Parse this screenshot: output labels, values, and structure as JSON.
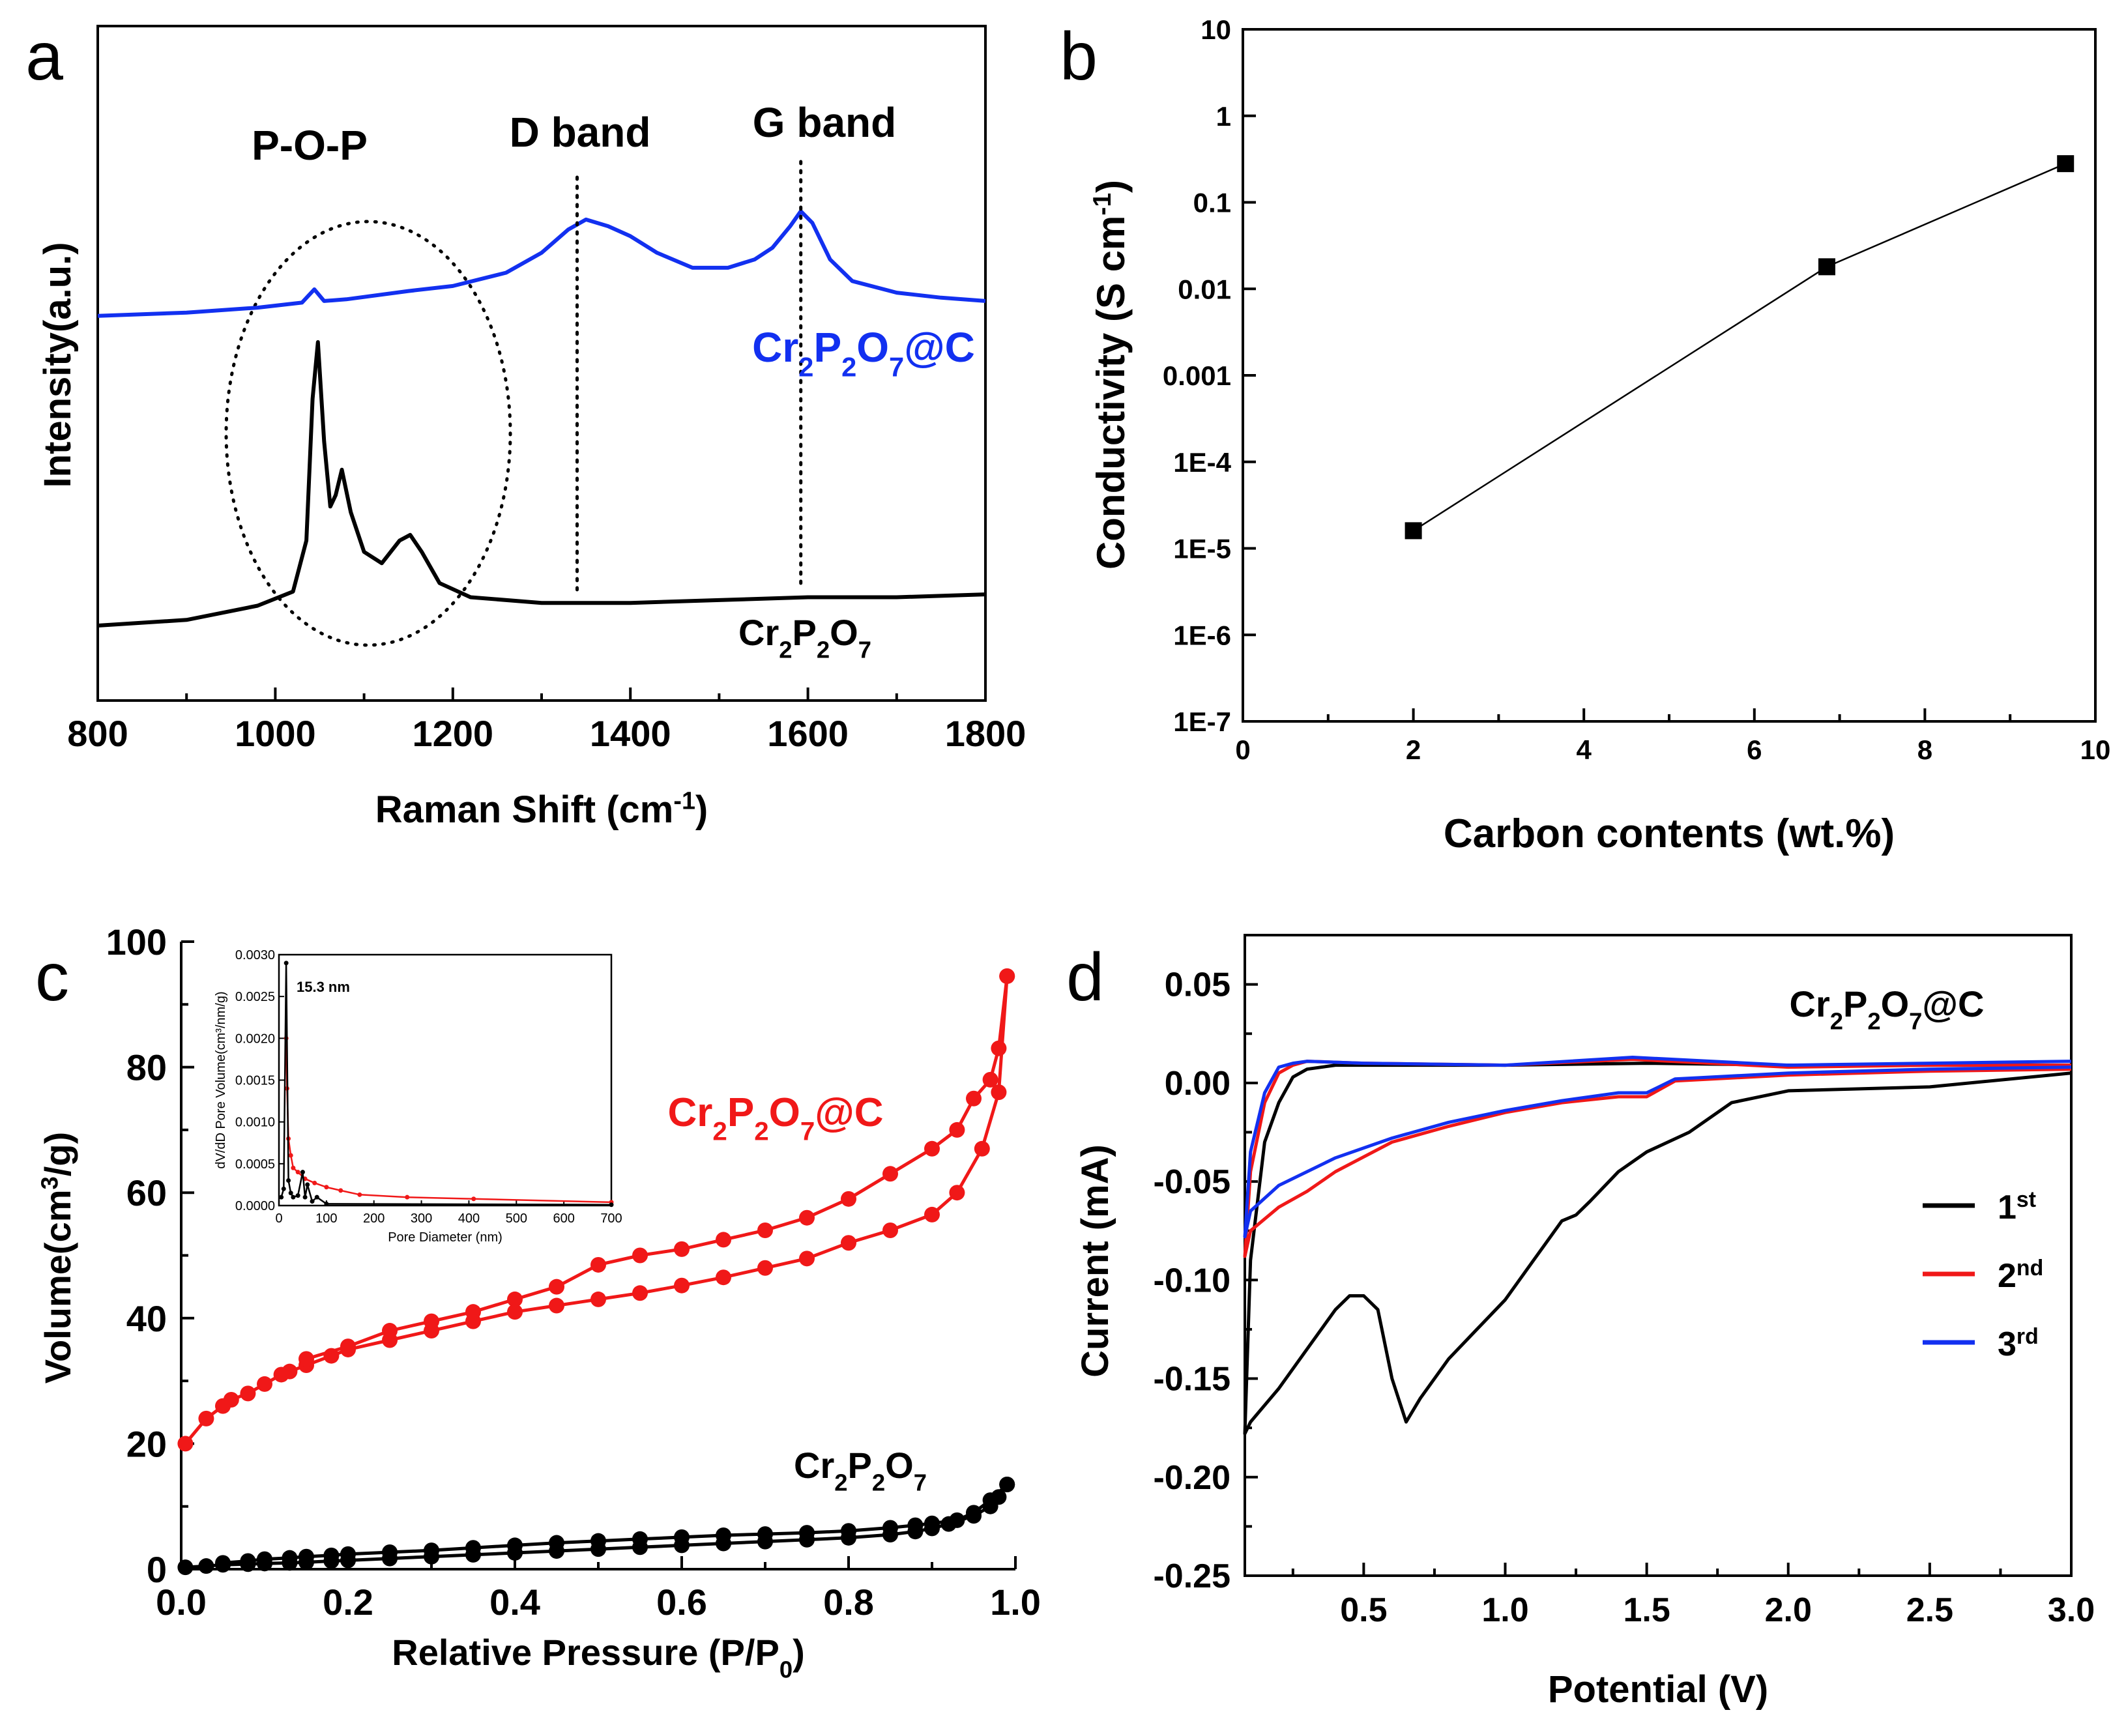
{
  "colors": {
    "black": "#000000",
    "blue": "#1230f0",
    "red": "#f01818"
  },
  "chart_data": [
    {
      "panel": "a",
      "type": "line",
      "xlabel": "Raman Shift (cm",
      "xlabel_sup": "-1",
      "xlabel_tail": ")",
      "ylabel": "Intensity(a.u.)",
      "xlim": [
        800,
        1800
      ],
      "xticks": [
        "800",
        "1000",
        "1200",
        "1400",
        "1600",
        "1800"
      ],
      "annotations": {
        "pop": "P-O-P",
        "d_band": "D band",
        "g_band": "G band"
      },
      "band_positions_cm": {
        "d_band": 1340,
        "g_band": 1592
      },
      "series": [
        {
          "name": "Cr2P2O7@C",
          "label_parts": [
            "Cr",
            "2",
            "P",
            "2",
            "O",
            "7",
            "@C"
          ],
          "color": "#1230f0",
          "x": [
            800,
            900,
            980,
            1030,
            1044,
            1055,
            1080,
            1150,
            1200,
            1260,
            1300,
            1330,
            1350,
            1375,
            1400,
            1430,
            1470,
            1510,
            1540,
            1560,
            1580,
            1592,
            1605,
            1625,
            1650,
            1700,
            1750,
            1800
          ],
          "y": [
            0.04,
            0.06,
            0.09,
            0.12,
            0.2,
            0.13,
            0.14,
            0.19,
            0.22,
            0.3,
            0.42,
            0.56,
            0.62,
            0.58,
            0.52,
            0.42,
            0.33,
            0.33,
            0.38,
            0.45,
            0.58,
            0.67,
            0.6,
            0.38,
            0.25,
            0.18,
            0.15,
            0.13
          ]
        },
        {
          "name": "Cr2P2O7",
          "label_parts": [
            "Cr",
            "2",
            "P",
            "2",
            "O",
            "7",
            ""
          ],
          "color": "#000000",
          "x": [
            800,
            900,
            980,
            1020,
            1035,
            1042,
            1048,
            1055,
            1062,
            1068,
            1075,
            1085,
            1100,
            1120,
            1140,
            1152,
            1165,
            1185,
            1220,
            1300,
            1400,
            1500,
            1600,
            1700,
            1800
          ],
          "y": [
            0.0,
            0.02,
            0.07,
            0.12,
            0.3,
            0.8,
            1.0,
            0.65,
            0.42,
            0.46,
            0.55,
            0.4,
            0.26,
            0.22,
            0.3,
            0.32,
            0.26,
            0.15,
            0.1,
            0.08,
            0.08,
            0.09,
            0.1,
            0.1,
            0.11
          ]
        }
      ]
    },
    {
      "panel": "b",
      "type": "line",
      "xlabel": "Carbon contents (wt.%)",
      "ylabel": "Conductivity (S cm",
      "ylabel_sup": "-1",
      "ylabel_tail": ")",
      "xlim": [
        0,
        10
      ],
      "ylim_log10": [
        -7,
        1
      ],
      "xticks": [
        "0",
        "2",
        "4",
        "6",
        "8",
        "10"
      ],
      "yticks": [
        "1E-7",
        "1E-6",
        "1E-5",
        "1E-4",
        "0.001",
        "0.01",
        "0.1",
        "1",
        "10"
      ],
      "series": [
        {
          "name": "Conductivity",
          "x": [
            2.0,
            6.85,
            9.65
          ],
          "y": [
            1.6e-05,
            0.018,
            0.28
          ]
        }
      ]
    },
    {
      "panel": "c",
      "type": "line",
      "xlabel": "Relative Pressure (P/P",
      "xlabel_sub": "0",
      "xlabel_tail": ")",
      "ylabel": "Volume(cm",
      "ylabel_sup": "3",
      "ylabel_tail": "/g)",
      "xlim": [
        0,
        1.0
      ],
      "ylim": [
        0,
        100
      ],
      "xticks": [
        "0.0",
        "0.2",
        "0.4",
        "0.6",
        "0.8",
        "1.0"
      ],
      "yticks": [
        "0",
        "20",
        "40",
        "60",
        "80",
        "100"
      ],
      "series": [
        {
          "name": "Cr2P2O7@C adsorption",
          "label_parts": [
            "Cr",
            "2",
            "P",
            "2",
            "O",
            "7",
            "@C"
          ],
          "color": "#f01818",
          "x": [
            0.005,
            0.03,
            0.05,
            0.06,
            0.08,
            0.1,
            0.12,
            0.13,
            0.15,
            0.18,
            0.2,
            0.25,
            0.3,
            0.35,
            0.4,
            0.45,
            0.5,
            0.55,
            0.6,
            0.65,
            0.7,
            0.75,
            0.8,
            0.85,
            0.9,
            0.93,
            0.96,
            0.98,
            0.99
          ],
          "y": [
            20,
            24,
            26,
            27,
            28,
            29.5,
            31,
            31.5,
            32.5,
            34,
            35,
            36.5,
            38,
            39.5,
            41,
            42,
            43,
            44,
            45.2,
            46.5,
            48,
            49.5,
            52,
            54,
            56.5,
            60,
            67,
            76,
            94.5
          ]
        },
        {
          "name": "Cr2P2O7@C desorption",
          "color": "#f01818",
          "x": [
            0.99,
            0.98,
            0.97,
            0.95,
            0.93,
            0.9,
            0.85,
            0.8,
            0.75,
            0.7,
            0.65,
            0.6,
            0.55,
            0.5,
            0.45,
            0.4,
            0.35,
            0.3,
            0.25,
            0.2,
            0.15
          ],
          "y": [
            94.5,
            83,
            78,
            75,
            70,
            67,
            63,
            59,
            56,
            54,
            52.5,
            51,
            50,
            48.5,
            45,
            43,
            41,
            39.5,
            38,
            35.5,
            33.5
          ]
        },
        {
          "name": "Cr2P2O7 adsorption",
          "label_parts": [
            "Cr",
            "2",
            "P",
            "2",
            "O",
            "7",
            ""
          ],
          "color": "#000000",
          "x": [
            0.005,
            0.03,
            0.05,
            0.08,
            0.1,
            0.13,
            0.15,
            0.18,
            0.2,
            0.25,
            0.3,
            0.35,
            0.4,
            0.45,
            0.5,
            0.55,
            0.6,
            0.65,
            0.7,
            0.75,
            0.8,
            0.85,
            0.88,
            0.9,
            0.92,
            0.95,
            0.97,
            0.98,
            0.99
          ],
          "y": [
            0.3,
            0.5,
            0.7,
            0.8,
            0.9,
            1.0,
            1.1,
            1.3,
            1.4,
            1.7,
            2.0,
            2.3,
            2.6,
            2.9,
            3.2,
            3.5,
            3.8,
            4.1,
            4.4,
            4.7,
            5.0,
            5.5,
            6.0,
            6.5,
            7.2,
            8.5,
            10,
            11.5,
            13.5
          ]
        },
        {
          "name": "Cr2P2O7 desorption",
          "color": "#000000",
          "x": [
            0.99,
            0.97,
            0.95,
            0.93,
            0.9,
            0.88,
            0.85,
            0.8,
            0.75,
            0.7,
            0.65,
            0.6,
            0.55,
            0.5,
            0.45,
            0.4,
            0.35,
            0.3,
            0.25,
            0.2,
            0.18,
            0.15,
            0.13,
            0.1,
            0.08,
            0.05
          ],
          "y": [
            13.5,
            11,
            9,
            7.8,
            7.3,
            7.0,
            6.6,
            6.1,
            5.8,
            5.6,
            5.4,
            5.1,
            4.8,
            4.5,
            4.2,
            3.8,
            3.4,
            3.0,
            2.7,
            2.4,
            2.2,
            2.0,
            1.8,
            1.6,
            1.3,
            1.0
          ]
        }
      ],
      "inset": {
        "type": "line",
        "xlabel": "Pore Diameter (nm)",
        "ylabel": "dV/dD Pore Volume(cm³/nm/g)",
        "xlim": [
          0,
          700
        ],
        "ylim": [
          0,
          0.003
        ],
        "xticks": [
          "0",
          "100",
          "200",
          "300",
          "400",
          "500",
          "600",
          "700"
        ],
        "yticks": [
          "0.0000",
          "0.0005",
          "0.0010",
          "0.0015",
          "0.0020",
          "0.0025",
          "0.0030"
        ],
        "annotation": "15.3 nm",
        "series": [
          {
            "name": "Cr2P2O7@C",
            "color": "#f01818",
            "x": [
              15.3,
              17,
              20,
              25,
              30,
              40,
              55,
              75,
              100,
              130,
              170,
              270,
              410,
              700
            ],
            "y": [
              0.002,
              0.0014,
              0.0008,
              0.0006,
              0.00045,
              0.0004,
              0.00032,
              0.00027,
              0.00022,
              0.00018,
              0.00013,
              0.0001,
              8e-05,
              4e-05
            ]
          },
          {
            "name": "Cr2P2O7",
            "color": "#000000",
            "x": [
              5,
              10,
              15.3,
              20,
              25,
              30,
              40,
              50,
              55,
              60,
              70,
              80,
              100,
              700
            ],
            "y": [
              0.0001,
              0.0002,
              0.0029,
              0.0003,
              0.00015,
              0.0001,
              0.00012,
              0.0004,
              0.0001,
              0.00025,
              5e-05,
              0.0001,
              2e-05,
              1e-05
            ]
          }
        ]
      }
    },
    {
      "panel": "d",
      "type": "line",
      "title_parts": [
        "Cr",
        "2",
        "P",
        "2",
        "O",
        "7",
        "@C"
      ],
      "xlabel": "Potential (V)",
      "ylabel": "Current (mA)",
      "xlim": [
        0.08,
        3.0
      ],
      "ylim": [
        -0.25,
        0.075
      ],
      "xticks": [
        "0.5",
        "1.0",
        "1.5",
        "2.0",
        "2.5",
        "3.0"
      ],
      "yticks": [
        "-0.25",
        "-0.20",
        "-0.15",
        "-0.10",
        "-0.05",
        "0.00",
        "0.05"
      ],
      "legend": [
        {
          "base": "1",
          "sup": "st",
          "color": "#000000"
        },
        {
          "base": "2",
          "sup": "nd",
          "color": "#f01818"
        },
        {
          "base": "3",
          "sup": "rd",
          "color": "#1230f0"
        }
      ],
      "series": [
        {
          "name": "1st",
          "color": "#000000",
          "x": [
            3.0,
            2.5,
            2.0,
            1.8,
            1.65,
            1.5,
            1.4,
            1.3,
            1.25,
            1.2,
            1.1,
            1.0,
            0.9,
            0.8,
            0.7,
            0.65,
            0.6,
            0.55,
            0.5,
            0.45,
            0.4,
            0.3,
            0.2,
            0.1,
            0.08,
            0.1,
            0.15,
            0.2,
            0.25,
            0.3,
            0.4,
            0.6,
            1.0,
            1.5,
            2.0,
            2.5,
            3.0
          ],
          "y": [
            0.005,
            -0.002,
            -0.004,
            -0.01,
            -0.025,
            -0.035,
            -0.045,
            -0.06,
            -0.067,
            -0.07,
            -0.09,
            -0.11,
            -0.125,
            -0.14,
            -0.16,
            -0.172,
            -0.15,
            -0.115,
            -0.108,
            -0.108,
            -0.115,
            -0.135,
            -0.155,
            -0.172,
            -0.178,
            -0.09,
            -0.03,
            -0.01,
            0.003,
            0.007,
            0.009,
            0.009,
            0.009,
            0.01,
            0.009,
            0.009,
            0.009
          ]
        },
        {
          "name": "2nd",
          "color": "#f01818",
          "x": [
            3.0,
            2.5,
            2.0,
            1.6,
            1.5,
            1.4,
            1.2,
            1.0,
            0.8,
            0.6,
            0.4,
            0.3,
            0.2,
            0.1,
            0.08,
            0.1,
            0.15,
            0.2,
            0.25,
            0.3,
            0.5,
            1.0,
            1.45,
            2.0,
            2.5,
            3.0
          ],
          "y": [
            0.007,
            0.006,
            0.004,
            0.001,
            -0.007,
            -0.007,
            -0.01,
            -0.015,
            -0.022,
            -0.03,
            -0.045,
            -0.055,
            -0.063,
            -0.075,
            -0.088,
            -0.045,
            -0.01,
            0.005,
            0.009,
            0.011,
            0.01,
            0.009,
            0.012,
            0.008,
            0.009,
            0.009
          ]
        },
        {
          "name": "3rd",
          "color": "#1230f0",
          "x": [
            3.0,
            2.5,
            2.0,
            1.6,
            1.5,
            1.4,
            1.2,
            1.0,
            0.8,
            0.6,
            0.4,
            0.3,
            0.2,
            0.1,
            0.08,
            0.1,
            0.15,
            0.2,
            0.25,
            0.3,
            0.5,
            1.0,
            1.45,
            2.0,
            2.5,
            3.0
          ],
          "y": [
            0.008,
            0.007,
            0.005,
            0.002,
            -0.005,
            -0.005,
            -0.009,
            -0.014,
            -0.02,
            -0.028,
            -0.038,
            -0.045,
            -0.052,
            -0.065,
            -0.078,
            -0.035,
            -0.005,
            0.008,
            0.01,
            0.011,
            0.01,
            0.009,
            0.013,
            0.009,
            0.01,
            0.011
          ]
        }
      ]
    }
  ]
}
